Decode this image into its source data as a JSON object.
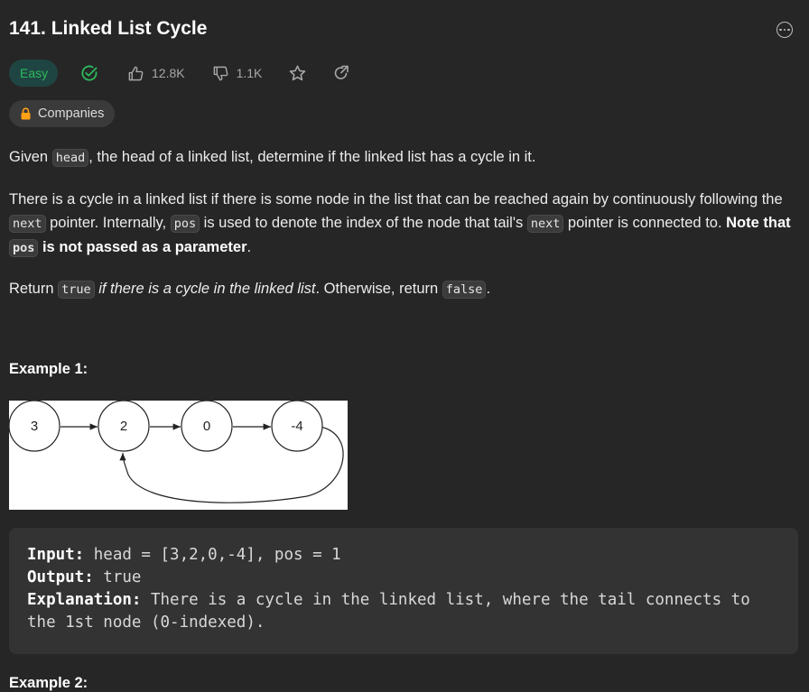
{
  "problem": {
    "title": "141. Linked List Cycle",
    "difficulty": "Easy",
    "likes": "12.8K",
    "dislikes": "1.1K",
    "companies_label": "Companies"
  },
  "description": {
    "p1": {
      "pre": "Given ",
      "code": "head",
      "post": ", the head of a linked list, determine if the linked list has a cycle in it."
    },
    "p2": {
      "t1": "There is a cycle in a linked list if there is some node in the list that can be reached again by continuously following the ",
      "c1": "next",
      "t2": " pointer. Internally, ",
      "c2": "pos",
      "t3": " is used to denote the index of the node that tail's ",
      "c3": "next",
      "t4": " pointer is connected to. ",
      "b1": "Note that ",
      "c4": "pos",
      "b2": " is not passed as a parameter",
      "t5": "."
    },
    "p3": {
      "t1": "Return ",
      "c1": "true",
      "i1": " if there is a cycle in the linked list",
      "t2": ". Otherwise, return ",
      "c2": "false",
      "t3": "."
    }
  },
  "example1": {
    "title": "Example 1:",
    "nodes": [
      "3",
      "2",
      "0",
      "-4"
    ],
    "input_label": "Input:",
    "input_value": " head = [3,2,0,-4], pos = 1",
    "output_label": "Output:",
    "output_value": " true",
    "explanation_label": "Explanation:",
    "explanation_value": " There is a cycle in the linked list, where the tail connects to",
    "explanation_value_2": "the 1st node (0-indexed)."
  },
  "example2": {
    "title": "Example 2:"
  },
  "colors": {
    "easy": "#2cbb5d",
    "accent_lock": "#ffa116"
  },
  "icons": [
    "check-circle-icon",
    "thumbs-up-icon",
    "thumbs-down-icon",
    "star-icon",
    "share-icon",
    "lock-icon",
    "more-icon"
  ]
}
